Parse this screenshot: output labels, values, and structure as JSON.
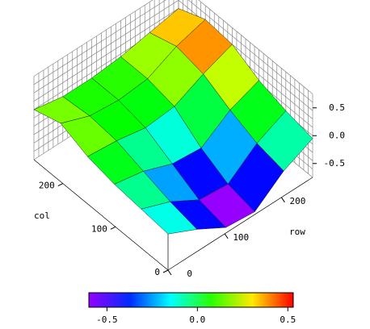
{
  "chart_data": {
    "type": "surface3d",
    "xlabel": "row",
    "ylabel": "col",
    "x": [
      0,
      51,
      102,
      153,
      204,
      255
    ],
    "y": [
      0,
      51,
      102,
      153,
      204,
      255
    ],
    "z": [
      [
        -0.1,
        -0.35,
        -0.65,
        -0.7,
        -0.3,
        -0.05
      ],
      [
        -0.05,
        -0.25,
        -0.55,
        -0.6,
        -0.2,
        0.05
      ],
      [
        0.0,
        -0.1,
        -0.3,
        -0.35,
        0.0,
        0.2
      ],
      [
        0.1,
        0.05,
        -0.05,
        0.0,
        0.25,
        0.45
      ],
      [
        0.3,
        0.1,
        0.05,
        0.1,
        0.35,
        0.5
      ],
      [
        0.15,
        0.05,
        0.05,
        0.1,
        0.2,
        0.3
      ]
    ],
    "xlim": [
      0,
      255
    ],
    "ylim": [
      0,
      255
    ],
    "zlim": [
      -0.75,
      0.75
    ],
    "xticks": [
      0,
      100,
      200
    ],
    "yticks": [
      0,
      100,
      200
    ],
    "zticks": [
      0.5,
      {
        "value": 0,
        "label": "0.0"
      },
      -0.5
    ],
    "clim": [
      -0.6,
      0.53
    ],
    "colorbar_ticks": [
      -0.5,
      {
        "value": 0,
        "label": "0.0"
      },
      0.5
    ]
  }
}
